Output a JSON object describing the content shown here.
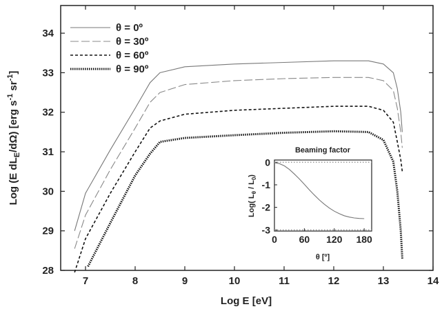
{
  "chart_data": [
    {
      "type": "line",
      "xlabel": "Log E [eV]",
      "ylabel": "Log (E dL_E/dΩ)  [erg s^-1 sr^-1]",
      "xlim": [
        6.5,
        14
      ],
      "ylim": [
        28,
        34.7
      ],
      "xticks": [
        7,
        8,
        9,
        10,
        11,
        12,
        13,
        14
      ],
      "yticks": [
        28,
        29,
        30,
        31,
        32,
        33,
        34
      ],
      "grid": false,
      "legend_position": "top-left",
      "series": [
        {
          "name": "θ = 0º",
          "dash": "solid",
          "x": [
            6.78,
            7.0,
            7.5,
            8.0,
            8.3,
            8.5,
            9.0,
            10.0,
            11.0,
            12.0,
            12.7,
            13.0,
            13.2,
            13.28,
            13.35,
            13.38
          ],
          "y": [
            29.0,
            29.95,
            31.05,
            32.1,
            32.75,
            33.0,
            33.15,
            33.22,
            33.26,
            33.3,
            33.3,
            33.22,
            33.0,
            32.6,
            32.0,
            31.5
          ]
        },
        {
          "name": "θ = 30º",
          "dash": "long-dash",
          "x": [
            6.78,
            7.0,
            7.5,
            8.0,
            8.3,
            8.5,
            9.0,
            10.0,
            11.0,
            12.0,
            12.7,
            13.0,
            13.2,
            13.28,
            13.35,
            13.38
          ],
          "y": [
            28.55,
            29.4,
            30.55,
            31.6,
            32.25,
            32.5,
            32.7,
            32.8,
            32.85,
            32.88,
            32.88,
            32.8,
            32.55,
            32.1,
            31.5,
            31.1
          ]
        },
        {
          "name": "θ = 60º",
          "dash": "short-dash",
          "x": [
            6.78,
            7.0,
            7.5,
            8.0,
            8.3,
            8.5,
            9.0,
            10.0,
            11.0,
            12.0,
            12.7,
            13.0,
            13.2,
            13.28,
            13.35,
            13.38
          ],
          "y": [
            27.95,
            28.8,
            29.95,
            31.0,
            31.6,
            31.78,
            31.95,
            32.05,
            32.1,
            32.15,
            32.15,
            32.05,
            31.75,
            31.25,
            30.8,
            30.5
          ]
        },
        {
          "name": "θ = 90º",
          "dash": "dotted",
          "x": [
            7.05,
            7.5,
            8.0,
            8.3,
            8.5,
            9.0,
            10.0,
            11.0,
            12.0,
            12.7,
            13.0,
            13.2,
            13.28,
            13.35,
            13.38
          ],
          "y": [
            28.1,
            29.2,
            30.4,
            30.95,
            31.25,
            31.35,
            31.42,
            31.48,
            31.52,
            31.5,
            31.3,
            30.75,
            30.0,
            29.0,
            28.3
          ]
        }
      ]
    },
    {
      "type": "line",
      "title": "Beaming factor",
      "xlabel": "θ [º]",
      "ylabel": "Log(L_θ / L_0)",
      "xlim": [
        0,
        195
      ],
      "ylim": [
        -3.05,
        0.1
      ],
      "xticks": [
        0,
        60,
        120,
        180
      ],
      "yticks": [
        0,
        -1,
        -2,
        -3
      ],
      "grid": false,
      "series": [
        {
          "x": [
            0,
            10,
            20,
            30,
            40,
            50,
            60,
            70,
            80,
            90,
            100,
            110,
            120,
            130,
            140,
            150,
            160,
            170,
            180
          ],
          "y": [
            -0.02,
            -0.06,
            -0.16,
            -0.32,
            -0.52,
            -0.74,
            -0.98,
            -1.22,
            -1.45,
            -1.67,
            -1.86,
            -2.03,
            -2.17,
            -2.28,
            -2.37,
            -2.43,
            -2.47,
            -2.49,
            -2.5
          ]
        }
      ]
    }
  ]
}
